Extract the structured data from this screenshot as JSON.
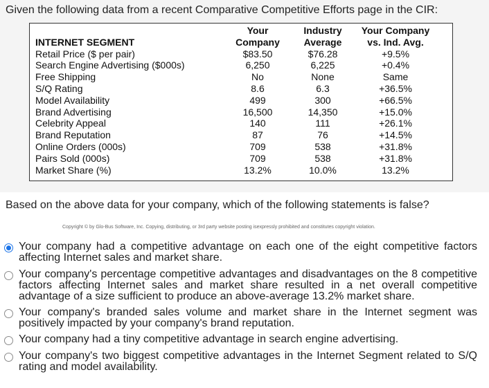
{
  "intro": "Given the following data from a recent Comparative Competitive Efforts page in the CIR:",
  "table": {
    "headers": {
      "segment": "INTERNET SEGMENT",
      "col1_line1": "Your",
      "col1_line2": "Company",
      "col2_line1": "Industry",
      "col2_line2": "Average",
      "col3_line1": "Your Company",
      "col3_line2": "vs. Ind. Avg."
    },
    "rows": [
      {
        "label": "Retail Price ($ per pair)",
        "company": "$83.50",
        "industry": "$76.28",
        "vs": "+9.5%"
      },
      {
        "label": "Search Engine Advertising ($000s)",
        "company": "6,250",
        "industry": "6,225",
        "vs": "+0.4%"
      },
      {
        "label": "Free Shipping",
        "company": "No",
        "industry": "None",
        "vs": "Same"
      },
      {
        "label": "S/Q Rating",
        "company": "8.6",
        "industry": "6.3",
        "vs": "+36.5%"
      },
      {
        "label": "Model Availability",
        "company": "499",
        "industry": "300",
        "vs": "+66.5%"
      },
      {
        "label": "Brand Advertising",
        "company": "16,500",
        "industry": "14,350",
        "vs": "+15.0%"
      },
      {
        "label": "Celebrity Appeal",
        "company": "140",
        "industry": "111",
        "vs": "+26.1%"
      },
      {
        "label": "Brand Reputation",
        "company": "87",
        "industry": "76",
        "vs": "+14.5%"
      },
      {
        "label": "Online Orders (000s)",
        "company": "709",
        "industry": "538",
        "vs": "+31.8%"
      },
      {
        "label": "Pairs Sold (000s)",
        "company": "709",
        "industry": "538",
        "vs": "+31.8%"
      },
      {
        "label": "Market Share (%)",
        "company": "13.2%",
        "industry": "10.0%",
        "vs": "13.2%"
      }
    ]
  },
  "question": "Based on the above data for your company, which of the following statements is false?",
  "copyright": "Copyright © by Glo-Bus Software, Inc. Copying, distributing, or 3rd party website posting isexpressly prohibited and constitutes copyright violation.",
  "options": [
    {
      "text": "Your company had a competitive advantage on each one of the eight competitive factors affecting Internet sales and market share.",
      "selected": true
    },
    {
      "text": "Your company's percentage competitive advantages and disadvantages on the 8 competitive factors affecting Internet sales and market share resulted in a net overall competitive advantage of a size sufficient to produce an above-average 13.2% market share.",
      "selected": false
    },
    {
      "text": "Your company's branded sales volume and market share in the Internet segment was positively impacted by your company's brand reputation.",
      "selected": false
    },
    {
      "text": "Your company had a tiny competitive advantage in search engine advertising.",
      "selected": false
    },
    {
      "text": "Your company's two biggest competitive advantages in the Internet Segment related to S/Q rating and model availability.",
      "selected": false
    }
  ],
  "colors": {
    "accent": "#1a73e8",
    "panel_bg": "#f4f4f4"
  }
}
